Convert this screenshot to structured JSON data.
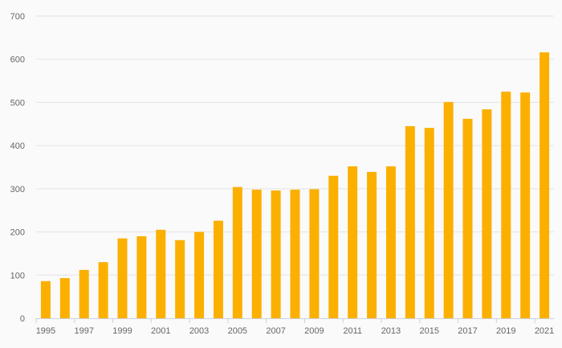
{
  "chart_data": {
    "type": "bar",
    "title": "",
    "xlabel": "",
    "ylabel": "",
    "ylim": [
      0,
      700
    ],
    "yticks": [
      "0",
      "100",
      "200",
      "300",
      "400",
      "500",
      "600",
      "700"
    ],
    "categories": [
      "1995",
      "1996",
      "1997",
      "1998",
      "1999",
      "2000",
      "2001",
      "2002",
      "2003",
      "2004",
      "2005",
      "2006",
      "2007",
      "2008",
      "2009",
      "2010",
      "2011",
      "2012",
      "2013",
      "2014",
      "2015",
      "2016",
      "2017",
      "2018",
      "2019",
      "2020",
      "2021"
    ],
    "values": [
      86,
      93,
      112,
      130,
      185,
      190,
      205,
      181,
      200,
      226,
      304,
      298,
      296,
      298,
      299,
      330,
      352,
      339,
      352,
      445,
      441,
      501,
      462,
      484,
      525,
      523,
      616
    ],
    "xtick_labels": [
      "1995",
      "1997",
      "1999",
      "2001",
      "2003",
      "2005",
      "2007",
      "2009",
      "2011",
      "2013",
      "2015",
      "2017",
      "2019",
      "2021"
    ],
    "grid": true,
    "bar_color": "#fbb000"
  }
}
